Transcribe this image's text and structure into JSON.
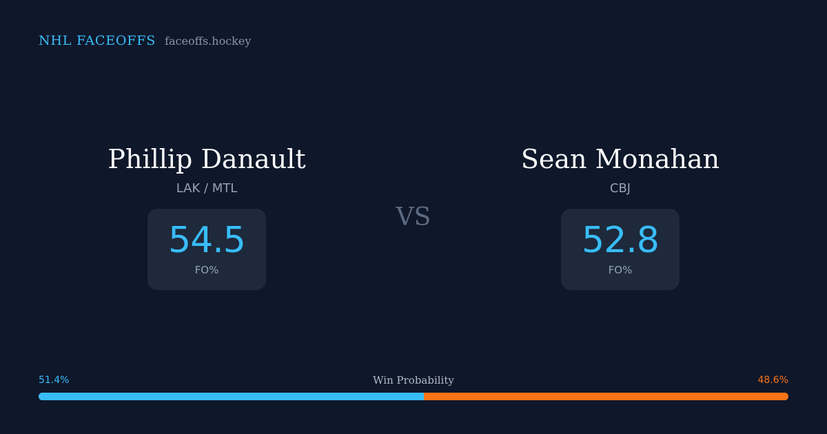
{
  "brand": {
    "title": "NHL FACEOFFS",
    "domain": "faceoffs.hockey",
    "accent_color": "#38bdf8"
  },
  "players": [
    {
      "name": "Phillip Danault",
      "team": "LAK / MTL",
      "stat_value": "54.5",
      "stat_label": "FO%"
    },
    {
      "name": "Sean Monahan",
      "team": "CBJ",
      "stat_value": "52.8",
      "stat_label": "FO%"
    }
  ],
  "vs_label": "VS",
  "win_probability": {
    "title": "Win Probability",
    "left_label": "51.4%",
    "right_label": "48.6%",
    "left_value": 51.4,
    "right_value": 48.6,
    "left_color": "#38bdf8",
    "right_color": "#f97316"
  },
  "colors": {
    "background": "#0f172a",
    "card": "#1e293b"
  }
}
